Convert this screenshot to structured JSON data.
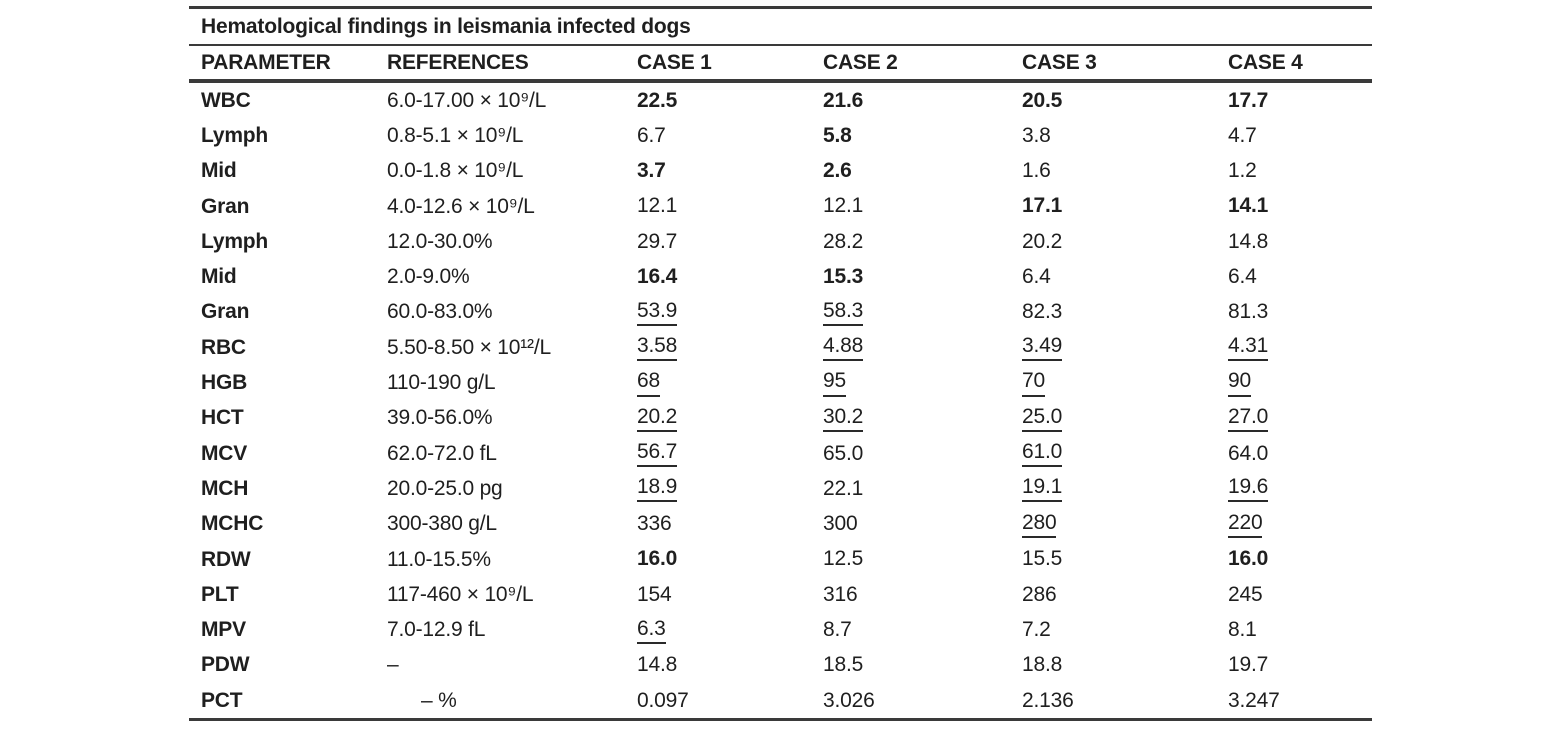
{
  "chart_data": {
    "type": "table",
    "title": "Hematological findings in leismania infected dogs",
    "columns": [
      "PARAMETER",
      "REFERENCES",
      "CASE 1",
      "CASE 2",
      "CASE 3",
      "CASE 4"
    ],
    "style_legend": {
      "b": "bold",
      "u": "underline",
      "n": "normal"
    },
    "rows": [
      {
        "parameter": "WBC",
        "reference": "6.0-17.00 × 10⁹/L",
        "ref_indent": false,
        "values": [
          {
            "v": "22.5",
            "s": "b"
          },
          {
            "v": "21.6",
            "s": "b"
          },
          {
            "v": "20.5",
            "s": "b"
          },
          {
            "v": "17.7",
            "s": "b"
          }
        ]
      },
      {
        "parameter": "Lymph",
        "reference": "0.8-5.1 × 10⁹/L",
        "ref_indent": false,
        "values": [
          {
            "v": "6.7",
            "s": "n"
          },
          {
            "v": "5.8",
            "s": "b"
          },
          {
            "v": "3.8",
            "s": "n"
          },
          {
            "v": "4.7",
            "s": "n"
          }
        ]
      },
      {
        "parameter": "Mid",
        "reference": "0.0-1.8 × 10⁹/L",
        "ref_indent": false,
        "values": [
          {
            "v": "3.7",
            "s": "b"
          },
          {
            "v": "2.6",
            "s": "b"
          },
          {
            "v": "1.6",
            "s": "n"
          },
          {
            "v": "1.2",
            "s": "n"
          }
        ]
      },
      {
        "parameter": "Gran",
        "reference": "4.0-12.6 × 10⁹/L",
        "ref_indent": false,
        "values": [
          {
            "v": "12.1",
            "s": "n"
          },
          {
            "v": "12.1",
            "s": "n"
          },
          {
            "v": "17.1",
            "s": "b"
          },
          {
            "v": "14.1",
            "s": "b"
          }
        ]
      },
      {
        "parameter": "Lymph",
        "reference": "12.0-30.0%",
        "ref_indent": false,
        "values": [
          {
            "v": "29.7",
            "s": "n"
          },
          {
            "v": "28.2",
            "s": "n"
          },
          {
            "v": "20.2",
            "s": "n"
          },
          {
            "v": "14.8",
            "s": "n"
          }
        ]
      },
      {
        "parameter": "Mid",
        "reference": "2.0-9.0%",
        "ref_indent": false,
        "values": [
          {
            "v": "16.4",
            "s": "b"
          },
          {
            "v": "15.3",
            "s": "b"
          },
          {
            "v": "6.4",
            "s": "n"
          },
          {
            "v": "6.4",
            "s": "n"
          }
        ]
      },
      {
        "parameter": "Gran",
        "reference": "60.0-83.0%",
        "ref_indent": false,
        "values": [
          {
            "v": "53.9",
            "s": "u"
          },
          {
            "v": "58.3",
            "s": "u"
          },
          {
            "v": "82.3",
            "s": "n"
          },
          {
            "v": "81.3",
            "s": "n"
          }
        ]
      },
      {
        "parameter": "RBC",
        "reference": "5.50-8.50 × 10¹²/L",
        "ref_indent": false,
        "values": [
          {
            "v": "3.58",
            "s": "u"
          },
          {
            "v": "4.88",
            "s": "u"
          },
          {
            "v": "3.49",
            "s": "u"
          },
          {
            "v": "4.31",
            "s": "u"
          }
        ]
      },
      {
        "parameter": "HGB",
        "reference": "110-190 g/L",
        "ref_indent": false,
        "values": [
          {
            "v": "68",
            "s": "u"
          },
          {
            "v": "95",
            "s": "u"
          },
          {
            "v": "70",
            "s": "u"
          },
          {
            "v": "90",
            "s": "u"
          }
        ]
      },
      {
        "parameter": "HCT",
        "reference": "39.0-56.0%",
        "ref_indent": false,
        "values": [
          {
            "v": "20.2",
            "s": "u"
          },
          {
            "v": "30.2",
            "s": "u"
          },
          {
            "v": "25.0",
            "s": "u"
          },
          {
            "v": "27.0",
            "s": "u"
          }
        ]
      },
      {
        "parameter": "MCV",
        "reference": "62.0-72.0 fL",
        "ref_indent": false,
        "values": [
          {
            "v": "56.7",
            "s": "u"
          },
          {
            "v": "65.0",
            "s": "n"
          },
          {
            "v": "61.0",
            "s": "u"
          },
          {
            "v": "64.0",
            "s": "n"
          }
        ]
      },
      {
        "parameter": "MCH",
        "reference": "20.0-25.0 pg",
        "ref_indent": false,
        "values": [
          {
            "v": "18.9",
            "s": "u"
          },
          {
            "v": "22.1",
            "s": "n"
          },
          {
            "v": "19.1",
            "s": "u"
          },
          {
            "v": "19.6",
            "s": "u"
          }
        ]
      },
      {
        "parameter": "MCHC",
        "reference": "300-380 g/L",
        "ref_indent": false,
        "values": [
          {
            "v": "336",
            "s": "n"
          },
          {
            "v": "300",
            "s": "n"
          },
          {
            "v": "280",
            "s": "u"
          },
          {
            "v": "220",
            "s": "u"
          }
        ]
      },
      {
        "parameter": "RDW",
        "reference": "11.0-15.5%",
        "ref_indent": false,
        "values": [
          {
            "v": "16.0",
            "s": "b"
          },
          {
            "v": "12.5",
            "s": "n"
          },
          {
            "v": "15.5",
            "s": "n"
          },
          {
            "v": "16.0",
            "s": "b"
          }
        ]
      },
      {
        "parameter": "PLT",
        "reference": "117-460 × 10⁹/L",
        "ref_indent": false,
        "values": [
          {
            "v": "154",
            "s": "n"
          },
          {
            "v": "316",
            "s": "n"
          },
          {
            "v": "286",
            "s": "n"
          },
          {
            "v": "245",
            "s": "n"
          }
        ]
      },
      {
        "parameter": "MPV",
        "reference": "7.0-12.9 fL",
        "ref_indent": false,
        "values": [
          {
            "v": "6.3",
            "s": "u"
          },
          {
            "v": "8.7",
            "s": "n"
          },
          {
            "v": "7.2",
            "s": "n"
          },
          {
            "v": "8.1",
            "s": "n"
          }
        ]
      },
      {
        "parameter": "PDW",
        "reference": "–",
        "ref_indent": false,
        "values": [
          {
            "v": "14.8",
            "s": "n"
          },
          {
            "v": "18.5",
            "s": "n"
          },
          {
            "v": "18.8",
            "s": "n"
          },
          {
            "v": "19.7",
            "s": "n"
          }
        ]
      },
      {
        "parameter": "PCT",
        "reference": "– %",
        "ref_indent": true,
        "values": [
          {
            "v": "0.097",
            "s": "n"
          },
          {
            "v": "3.026",
            "s": "n"
          },
          {
            "v": "2.136",
            "s": "n"
          },
          {
            "v": "3.247",
            "s": "n"
          }
        ]
      }
    ]
  }
}
